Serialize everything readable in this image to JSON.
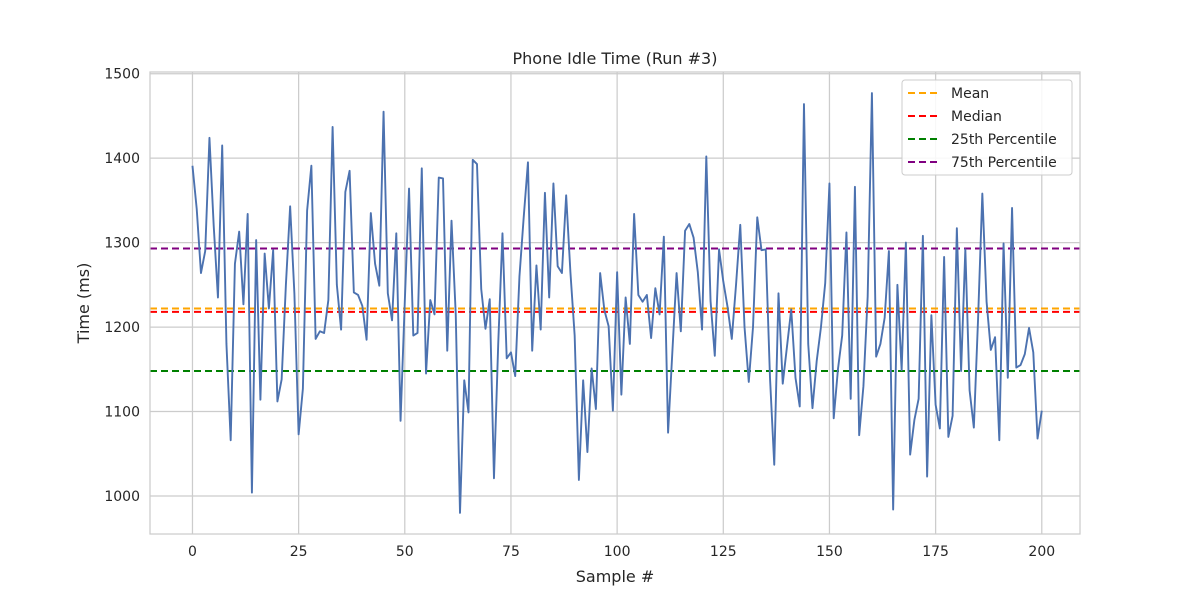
{
  "chart_data": {
    "type": "line",
    "title": "Phone Idle Time (Run #3)",
    "xlabel": "Sample #",
    "ylabel": "Time (ms)",
    "xlim": [
      -10,
      209
    ],
    "ylim": [
      955,
      1502
    ],
    "xticks": [
      0,
      25,
      50,
      75,
      100,
      125,
      150,
      175,
      200
    ],
    "yticks": [
      1000,
      1100,
      1200,
      1300,
      1400,
      1500
    ],
    "grid": true,
    "legend_position": "top-right",
    "series": [
      {
        "color": "#4c72b0",
        "x_start": 0,
        "values": [
          1391,
          1340,
          1264,
          1290,
          1424,
          1320,
          1235,
          1415,
          1180,
          1066,
          1275,
          1313,
          1227,
          1334,
          1004,
          1303,
          1114,
          1287,
          1222,
          1291,
          1112,
          1138,
          1250,
          1343,
          1240,
          1073,
          1127,
          1338,
          1391,
          1186,
          1195,
          1193,
          1232,
          1437,
          1250,
          1197,
          1360,
          1385,
          1241,
          1238,
          1225,
          1185,
          1335,
          1275,
          1249,
          1455,
          1240,
          1208,
          1311,
          1089,
          1230,
          1364,
          1190,
          1193,
          1388,
          1145,
          1232,
          1215,
          1377,
          1376,
          1172,
          1326,
          1215,
          980,
          1137,
          1099,
          1398,
          1393,
          1245,
          1198,
          1233,
          1021,
          1180,
          1311,
          1163,
          1170,
          1142,
          1260,
          1330,
          1395,
          1172,
          1273,
          1197,
          1359,
          1235,
          1370,
          1272,
          1264,
          1356,
          1265,
          1190,
          1019,
          1137,
          1052,
          1151,
          1103,
          1264,
          1220,
          1201,
          1101,
          1265,
          1120,
          1235,
          1180,
          1334,
          1238,
          1230,
          1238,
          1187,
          1246,
          1215,
          1307,
          1075,
          1170,
          1264,
          1195,
          1314,
          1322,
          1306,
          1265,
          1197,
          1402,
          1231,
          1166,
          1292,
          1254,
          1224,
          1186,
          1250,
          1321,
          1200,
          1135,
          1200,
          1330,
          1291,
          1292,
          1140,
          1037,
          1240,
          1133,
          1177,
          1221,
          1140,
          1106,
          1464,
          1180,
          1104,
          1160,
          1200,
          1252,
          1370,
          1092,
          1150,
          1190,
          1312,
          1115,
          1366,
          1072,
          1130,
          1236,
          1477,
          1165,
          1180,
          1211,
          1290,
          984,
          1250,
          1149,
          1300,
          1049,
          1090,
          1115,
          1308,
          1023,
          1214,
          1108,
          1080,
          1283,
          1070,
          1095,
          1317,
          1148,
          1292,
          1125,
          1081,
          1210,
          1358,
          1230,
          1173,
          1188,
          1066,
          1299,
          1140,
          1341,
          1152,
          1155,
          1168,
          1199,
          1170,
          1068,
          1101
        ]
      }
    ],
    "reference_lines": [
      {
        "name": "Mean",
        "value": 1222,
        "color": "#ffa500"
      },
      {
        "name": "Median",
        "value": 1218,
        "color": "#ff0000"
      },
      {
        "name": "25th Percentile",
        "value": 1148,
        "color": "#008000"
      },
      {
        "name": "75th Percentile",
        "value": 1293,
        "color": "#800080"
      }
    ]
  }
}
